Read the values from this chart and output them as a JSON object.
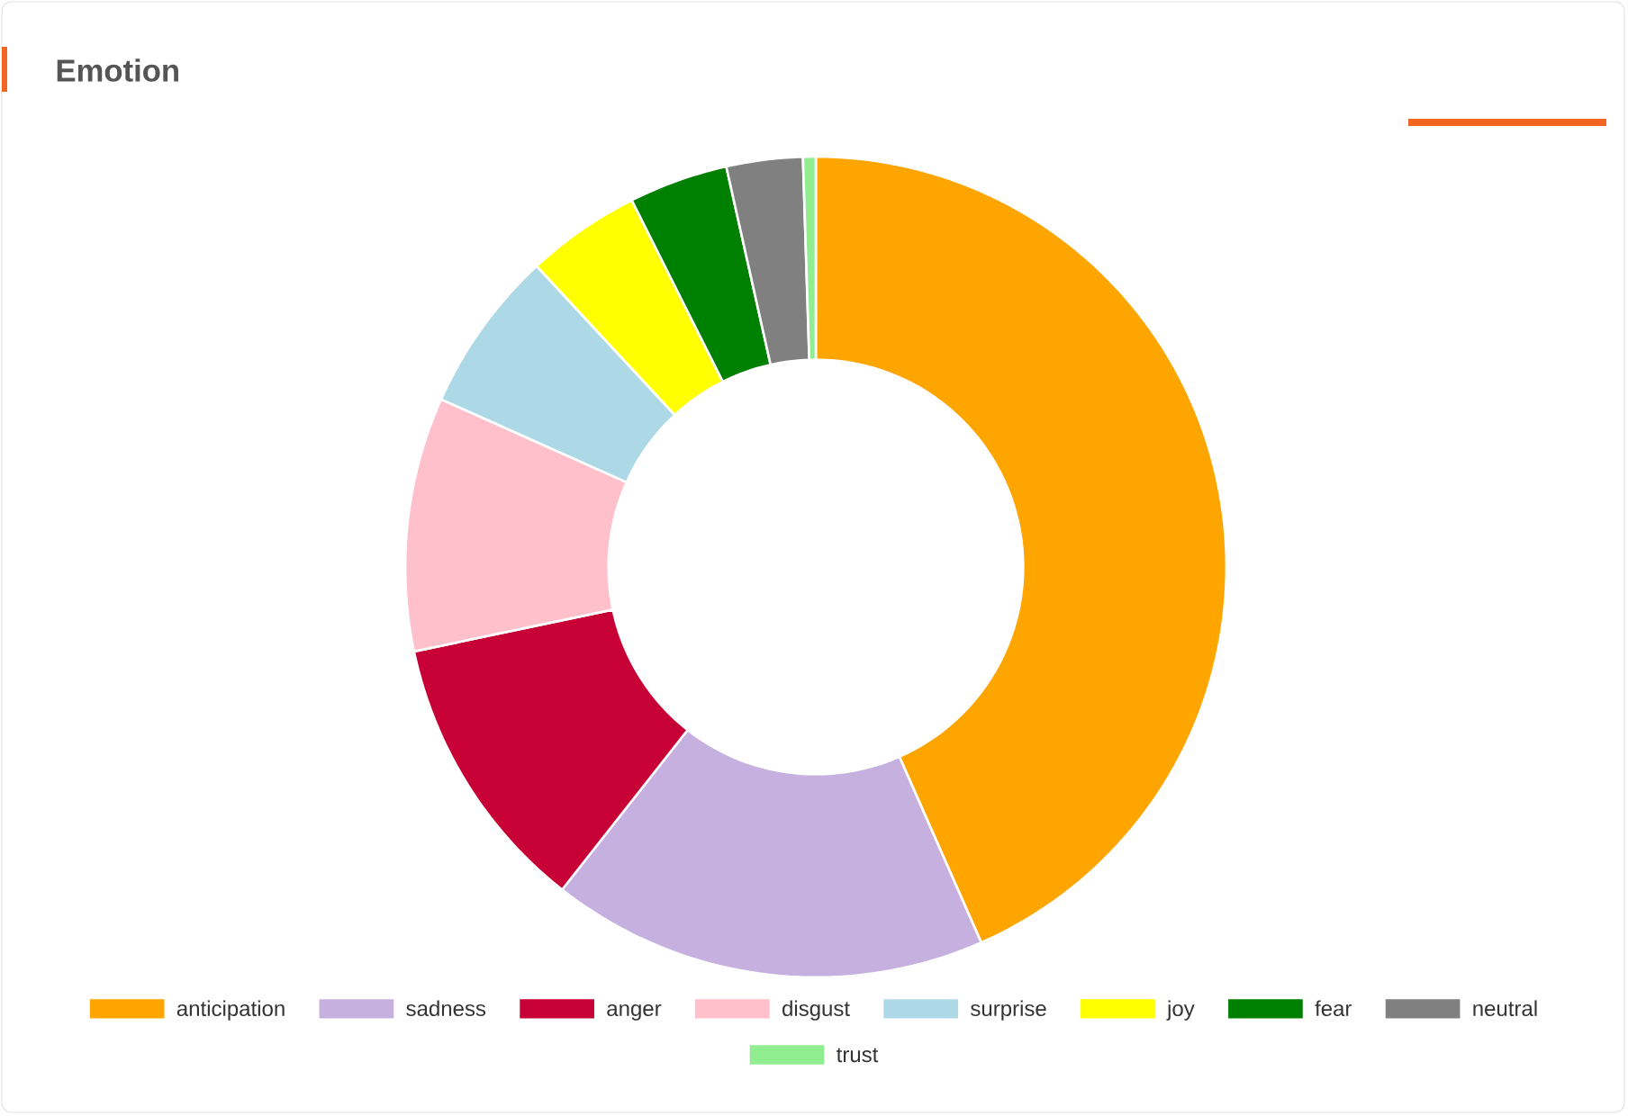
{
  "chart_data": {
    "type": "donut",
    "title": "Emotion",
    "categories": [
      "anticipation",
      "sadness",
      "anger",
      "disgust",
      "surprise",
      "joy",
      "fear",
      "neutral",
      "trust"
    ],
    "values": [
      43.4,
      17.2,
      11.1,
      10.0,
      6.4,
      4.5,
      3.9,
      3.0,
      0.5
    ],
    "colors": [
      "#ffa500",
      "#c5b0e0",
      "#c70036",
      "#ffc0cb",
      "#add8e6",
      "#ffff00",
      "#008000",
      "#808080",
      "#90ee90"
    ],
    "legend": "bottom"
  }
}
